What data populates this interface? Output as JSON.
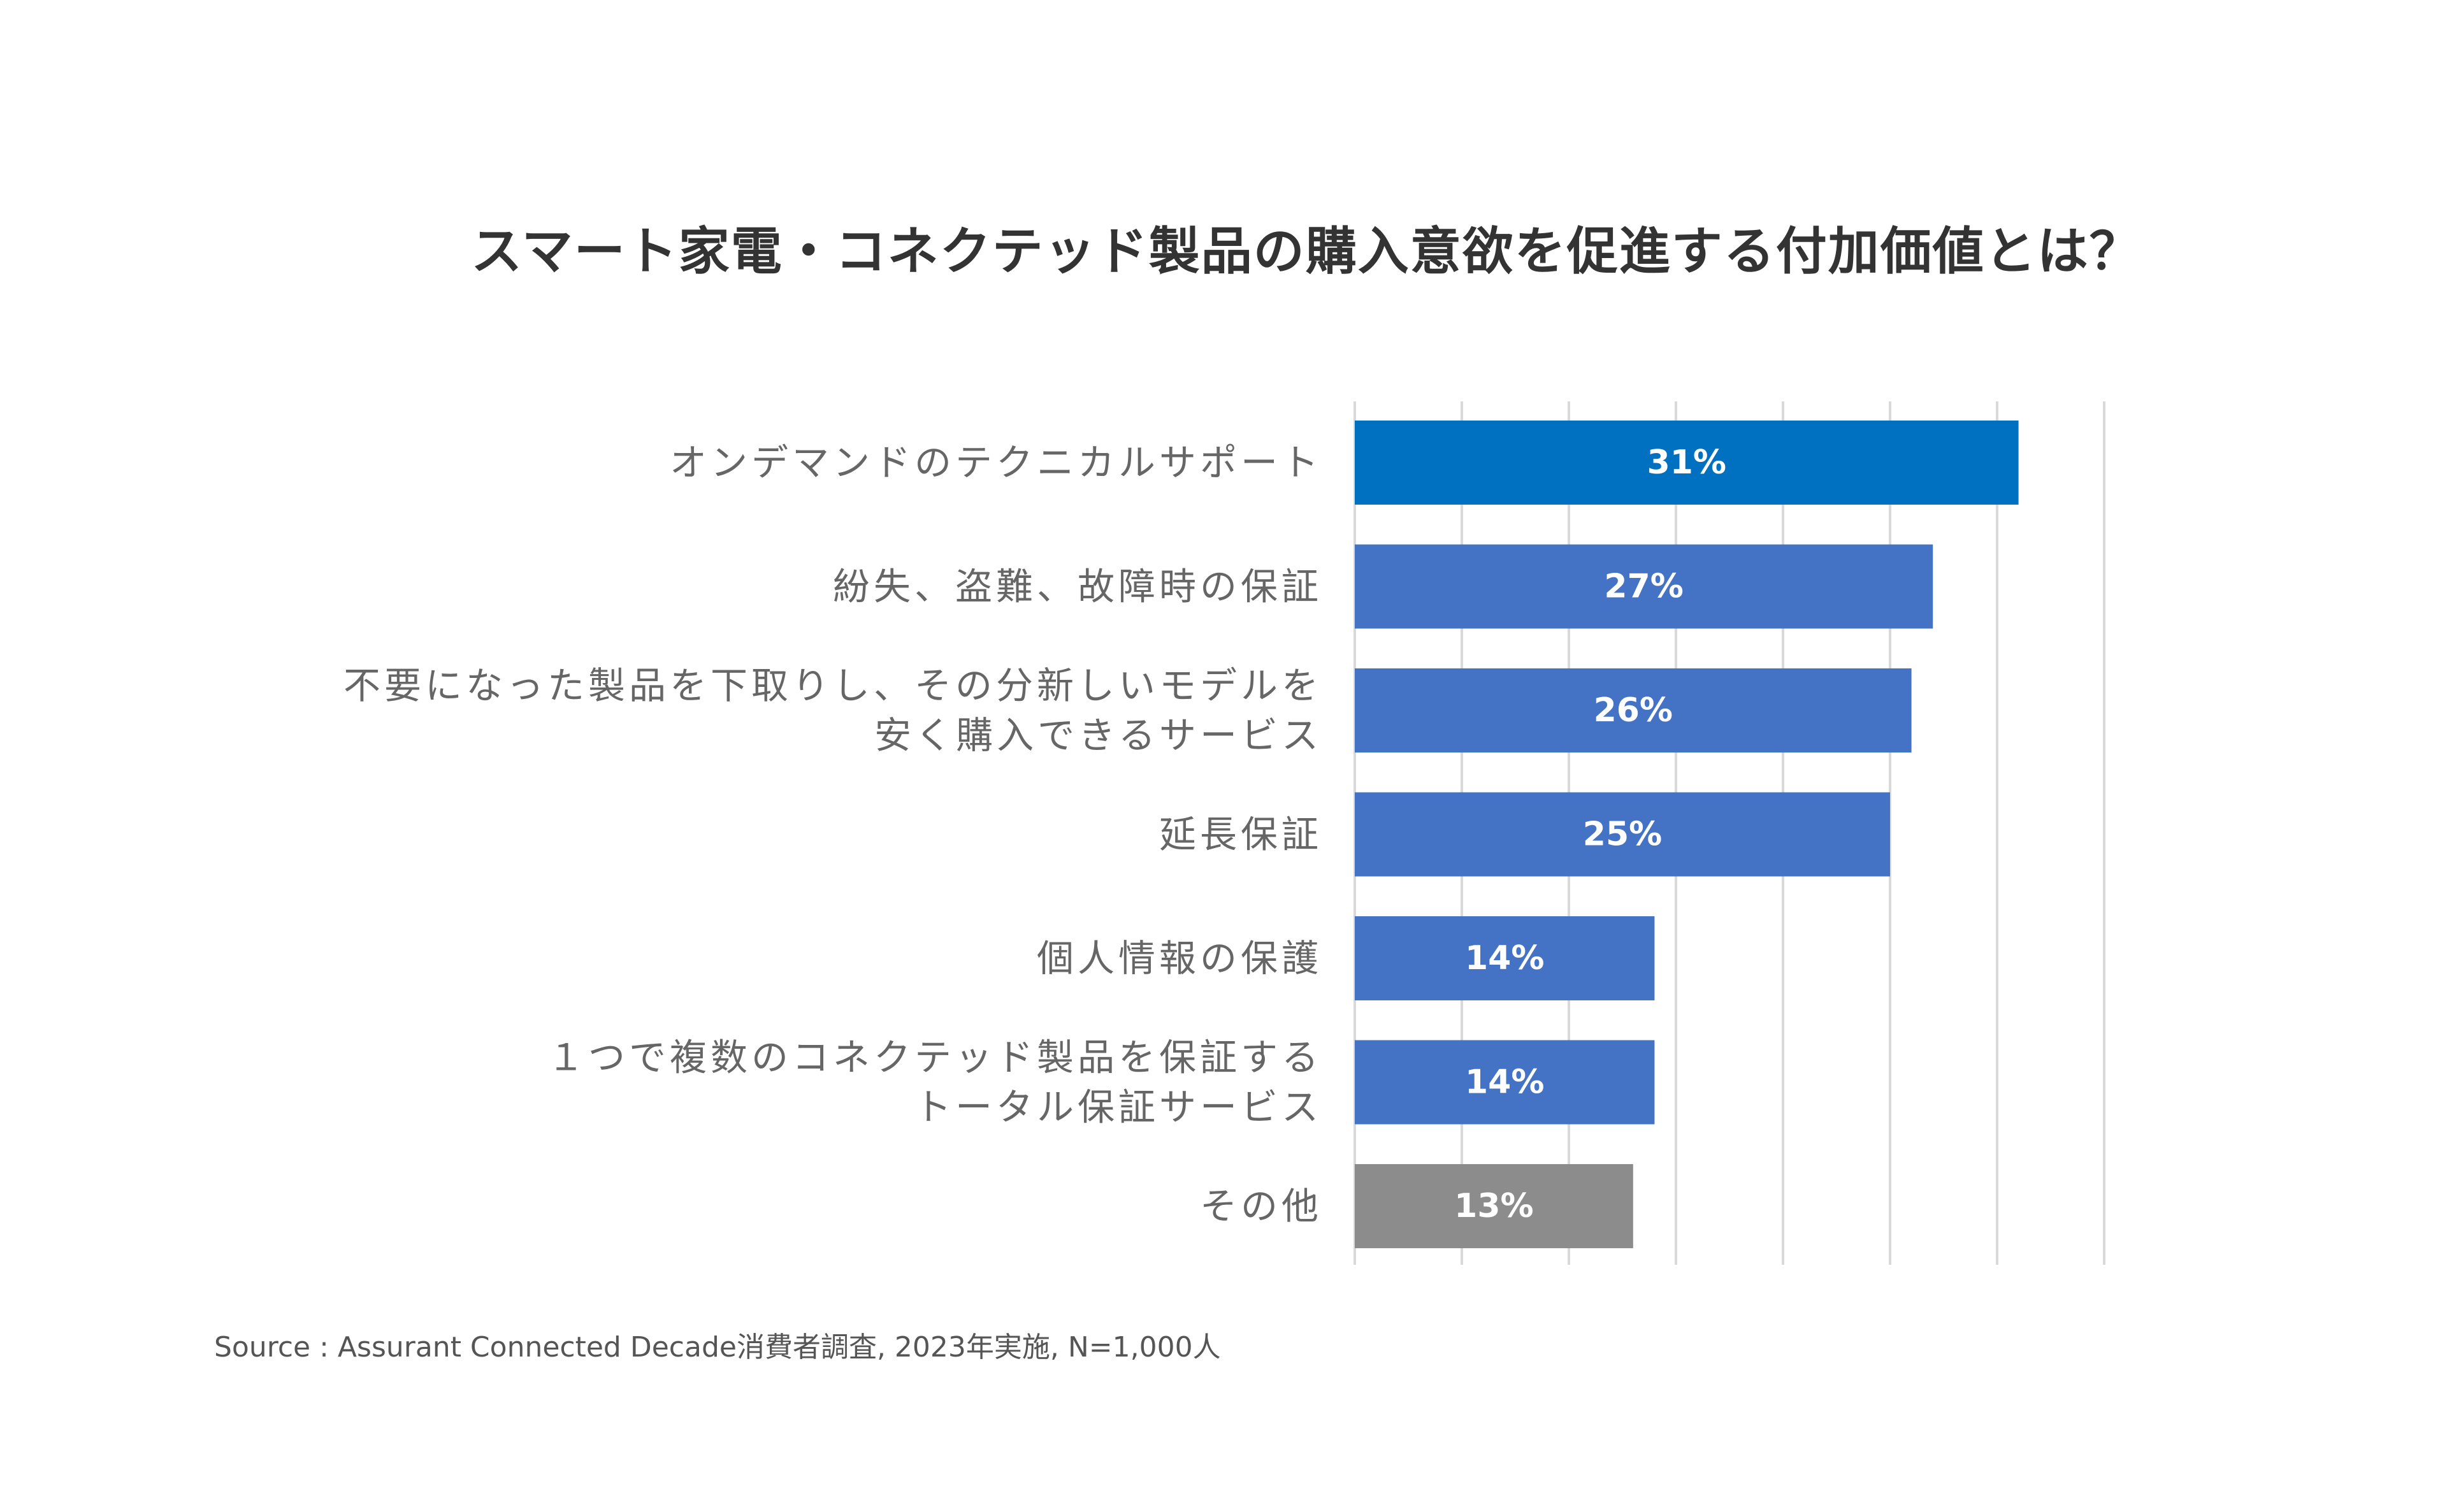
{
  "chart_data": {
    "type": "bar",
    "orientation": "horizontal",
    "title": "スマート家電・コネクテッド製品の購入意欲を促進する付加価値とは？",
    "xlabel": "",
    "ylabel": "",
    "xlim": [
      0,
      35
    ],
    "grid": true,
    "legend": "none",
    "value_suffix": "%",
    "categories": [
      [
        "オンデマンドのテクニカルサポート"
      ],
      [
        "紛失、盗難、故障時の保証"
      ],
      [
        "不要になった製品を下取りし、その分新しいモデルを",
        "安く購入できるサービス"
      ],
      [
        "延長保証"
      ],
      [
        "個人情報の保護"
      ],
      [
        "１つで複数のコネクテッド製品を保証する",
        "トータル保証サービス"
      ],
      [
        "その他"
      ]
    ],
    "values": [
      31,
      27,
      26,
      25,
      14,
      14,
      13
    ],
    "colors": [
      "#0070C0",
      "#4472C4",
      "#4472C4",
      "#4472C4",
      "#4472C4",
      "#4472C4",
      "#8C8C8C"
    ]
  },
  "source": "Source : Assurant Connected Decade消費者調査, 2023年実施, N=1,000人"
}
